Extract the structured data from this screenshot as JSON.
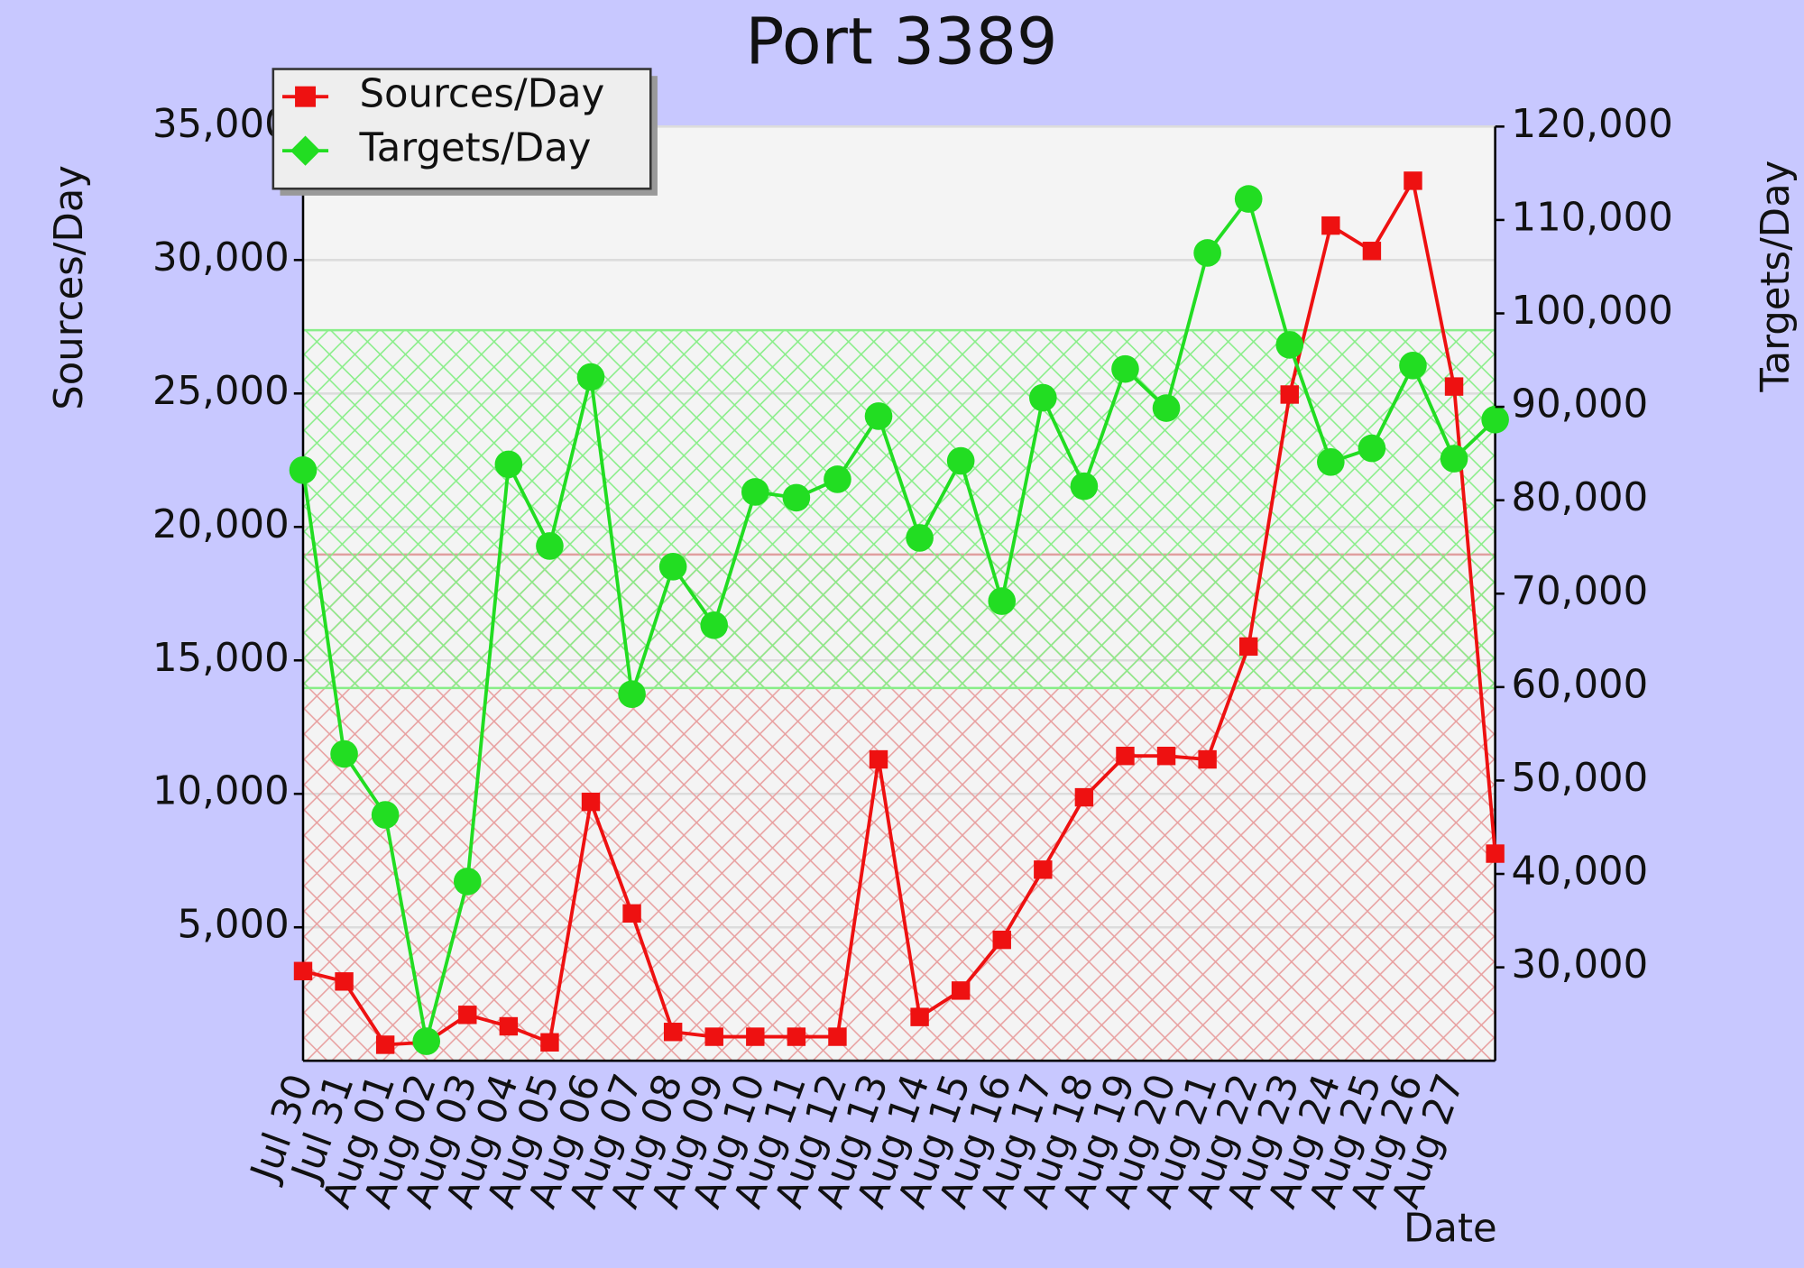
{
  "chart_data": {
    "type": "line",
    "title": "Port 3389",
    "y_label": "Sources/Day",
    "y2_label": "Targets/Day",
    "x_label": "Date",
    "categories": [
      "Jul 30",
      "Jul 31",
      "Aug 01",
      "Aug 02",
      "Aug 03",
      "Aug 04",
      "Aug 05",
      "Aug 06",
      "Aug 07",
      "Aug 08",
      "Aug 09",
      "Aug 10",
      "Aug 11",
      "Aug 12",
      "Aug 13",
      "Aug 14",
      "Aug 15",
      "Aug 16",
      "Aug 17",
      "Aug 18",
      "Aug 19",
      "Aug 20",
      "Aug 21",
      "Aug 22",
      "Aug 23",
      "Aug 24",
      "Aug 25",
      "Aug 26",
      "Aug 27",
      null
    ],
    "series": [
      {
        "name": "Sources/Day",
        "color": "#ee1111",
        "marker": "square",
        "values": [
          3360,
          2970,
          600,
          690,
          1720,
          1290,
          690,
          9700,
          5520,
          1080,
          900,
          900,
          900,
          900,
          11290,
          1640,
          2630,
          4530,
          7160,
          9870,
          11420,
          11420,
          11290,
          15520,
          24960,
          31290,
          30340,
          32970,
          25260,
          7760
        ]
      },
      {
        "name": "Targets/Day",
        "color": "#22dd22",
        "marker": "circle",
        "axis": "y2",
        "values": [
          83220,
          52840,
          46320,
          22090,
          39190,
          83840,
          75100,
          93190,
          59240,
          72890,
          66620,
          80890,
          80270,
          82240,
          89000,
          75970,
          84210,
          69200,
          90970,
          81500,
          94050,
          89860,
          106470,
          112250,
          96630,
          84090,
          85560,
          94420,
          84450,
          88630
        ]
      }
    ],
    "ylim": [
      0,
      35000
    ],
    "yticks": [
      {
        "value": 5000,
        "label": "5,000"
      },
      {
        "value": 10000,
        "label": "10,000"
      },
      {
        "value": 15000,
        "label": "15,000"
      },
      {
        "value": 20000,
        "label": "20,000"
      },
      {
        "value": 25000,
        "label": "25,000"
      },
      {
        "value": 30000,
        "label": "30,000"
      },
      {
        "value": 35000,
        "label": "35,000"
      }
    ],
    "y2lim": [
      20000,
      120000
    ],
    "y2ticks": [
      {
        "value": 30000,
        "label": "30,000"
      },
      {
        "value": 40000,
        "label": "40,000"
      },
      {
        "value": 50000,
        "label": "50,000"
      },
      {
        "value": 60000,
        "label": "60,000"
      },
      {
        "value": 70000,
        "label": "70,000"
      },
      {
        "value": 80000,
        "label": "80,000"
      },
      {
        "value": 90000,
        "label": "90,000"
      },
      {
        "value": 100000,
        "label": "100,000"
      },
      {
        "value": 110000,
        "label": "110,000"
      },
      {
        "value": 120000,
        "label": "120,000"
      }
    ],
    "grid": true,
    "legend": "upper left"
  }
}
